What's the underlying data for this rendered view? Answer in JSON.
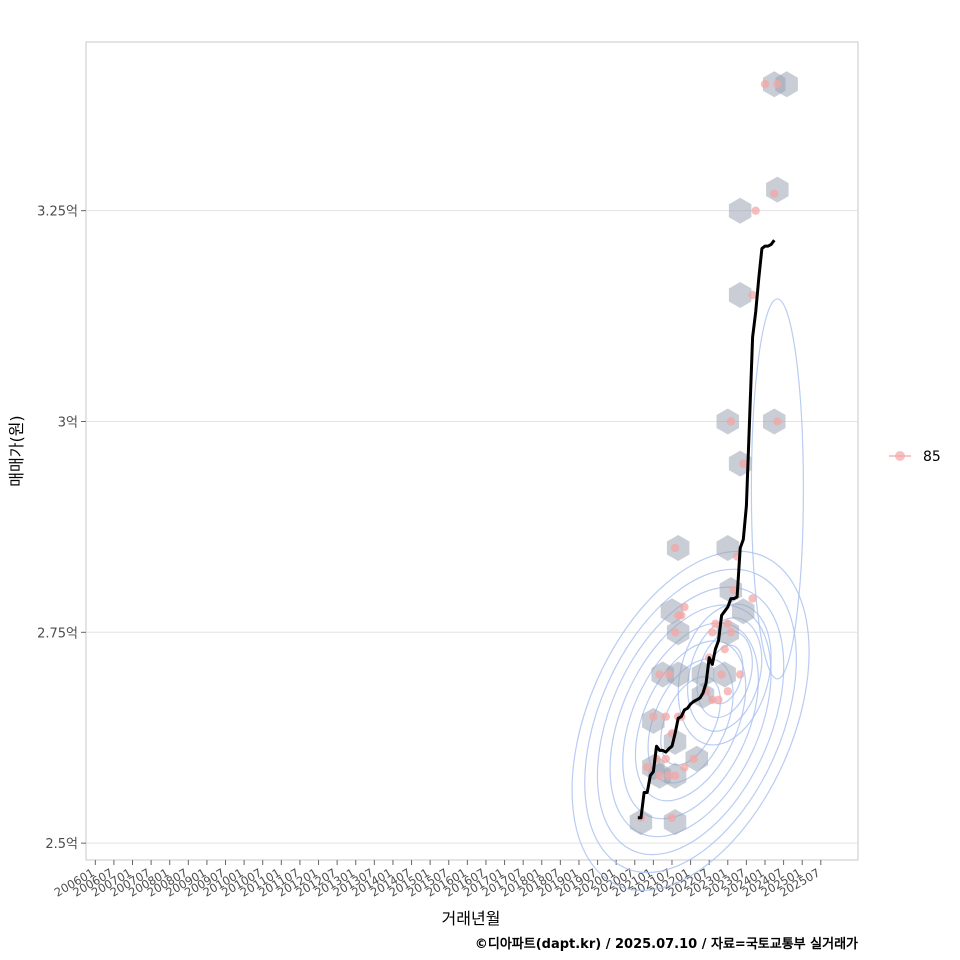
{
  "chart_data": {
    "type": "scatter",
    "xlabel": "거래년월",
    "ylabel": "매매가(원)",
    "caption": "©디아파트(dapt.kr) / 2025.07.10 / 자료=국토교통부 실거래가",
    "x_ticks": [
      "200601",
      "200607",
      "200701",
      "200707",
      "200801",
      "200807",
      "200901",
      "200907",
      "201001",
      "201007",
      "201101",
      "201107",
      "201201",
      "201207",
      "201301",
      "201307",
      "201401",
      "201407",
      "201501",
      "201507",
      "201601",
      "201607",
      "201701",
      "201707",
      "201801",
      "201807",
      "201901",
      "201907",
      "202001",
      "202007",
      "202101",
      "202107",
      "202201",
      "202207",
      "202301",
      "202307",
      "202401",
      "202407",
      "202501",
      "202507"
    ],
    "y_ticks": [
      {
        "value": 2.5,
        "label": "2.5억"
      },
      {
        "value": 2.75,
        "label": "2.75억"
      },
      {
        "value": 3.0,
        "label": "3억"
      },
      {
        "value": 3.25,
        "label": "3.25억"
      }
    ],
    "xlim": [
      "2005-10",
      "2026-07"
    ],
    "ylim": [
      2.48,
      3.45
    ],
    "grid": true,
    "legend": {
      "position": "right",
      "entries": [
        {
          "label": "85",
          "color": "#f4a6a6"
        }
      ]
    },
    "colors": {
      "points": "#f4a6a6",
      "hex": "#9aa4b4",
      "contour": "#a8bff0",
      "trend": "#000000"
    },
    "points": [
      [
        "2020-09",
        2.53
      ],
      [
        "2020-11",
        2.59
      ],
      [
        "2021-01",
        2.65
      ],
      [
        "2021-02",
        2.6
      ],
      [
        "2021-03",
        2.58
      ],
      [
        "2021-03",
        2.7
      ],
      [
        "2021-05",
        2.6
      ],
      [
        "2021-05",
        2.65
      ],
      [
        "2021-06",
        2.58
      ],
      [
        "2021-06",
        2.7
      ],
      [
        "2021-07",
        2.53
      ],
      [
        "2021-07",
        2.63
      ],
      [
        "2021-08",
        2.58
      ],
      [
        "2021-08",
        2.75
      ],
      [
        "2021-08",
        2.85
      ],
      [
        "2021-09",
        2.65
      ],
      [
        "2021-09",
        2.77
      ],
      [
        "2021-10",
        2.65
      ],
      [
        "2021-10",
        2.77
      ],
      [
        "2021-11",
        2.59
      ],
      [
        "2021-11",
        2.78
      ],
      [
        "2022-02",
        2.6
      ],
      [
        "2022-06",
        2.68
      ],
      [
        "2022-07",
        2.72
      ],
      [
        "2022-08",
        2.75
      ],
      [
        "2022-08",
        2.67
      ],
      [
        "2022-09",
        2.76
      ],
      [
        "2022-10",
        2.67
      ],
      [
        "2022-11",
        2.7
      ],
      [
        "2022-12",
        2.73
      ],
      [
        "2023-01",
        2.68
      ],
      [
        "2023-01",
        2.76
      ],
      [
        "2023-02",
        2.75
      ],
      [
        "2023-03",
        2.8
      ],
      [
        "2023-04",
        2.84
      ],
      [
        "2023-05",
        2.7
      ],
      [
        "2023-06",
        2.95
      ],
      [
        "2023-02",
        3.0
      ],
      [
        "2023-09",
        2.79
      ],
      [
        "2023-09",
        3.15
      ],
      [
        "2023-10",
        3.25
      ],
      [
        "2024-01",
        3.4
      ],
      [
        "2024-05",
        3.4
      ],
      [
        "2024-05",
        3.0
      ],
      [
        "2024-04",
        3.27
      ]
    ],
    "hexbins": [
      [
        "2020-09",
        2.525
      ],
      [
        "2021-01",
        2.59
      ],
      [
        "2021-01",
        2.645
      ],
      [
        "2021-03",
        2.58
      ],
      [
        "2021-04",
        2.7
      ],
      [
        "2021-07",
        2.775
      ],
      [
        "2021-08",
        2.525
      ],
      [
        "2021-08",
        2.58
      ],
      [
        "2021-08",
        2.62
      ],
      [
        "2021-09",
        2.7
      ],
      [
        "2021-09",
        2.75
      ],
      [
        "2021-09",
        2.85
      ],
      [
        "2022-03",
        2.6
      ],
      [
        "2022-05",
        2.7
      ],
      [
        "2022-05",
        2.675
      ],
      [
        "2023-01",
        2.75
      ],
      [
        "2023-01",
        2.85
      ],
      [
        "2023-02",
        2.8
      ],
      [
        "2023-01",
        3.0
      ],
      [
        "2023-06",
        2.775
      ],
      [
        "2023-05",
        2.95
      ],
      [
        "2023-05",
        3.15
      ],
      [
        "2023-05",
        3.25
      ],
      [
        "2024-04",
        3.0
      ],
      [
        "2024-05",
        3.275
      ],
      [
        "2024-04",
        3.4
      ],
      [
        "2024-08",
        3.4
      ],
      [
        "2022-12",
        2.7
      ]
    ],
    "trend": [
      [
        "2020-08",
        2.53
      ],
      [
        "2020-09",
        2.53
      ],
      [
        "2020-10",
        2.56
      ],
      [
        "2020-11",
        2.56
      ],
      [
        "2020-12",
        2.58
      ],
      [
        "2021-01",
        2.585
      ],
      [
        "2021-02",
        2.615
      ],
      [
        "2021-03",
        2.61
      ],
      [
        "2021-04",
        2.61
      ],
      [
        "2021-05",
        2.608
      ],
      [
        "2021-06",
        2.612
      ],
      [
        "2021-07",
        2.615
      ],
      [
        "2021-08",
        2.63
      ],
      [
        "2021-09",
        2.648
      ],
      [
        "2021-10",
        2.65
      ],
      [
        "2021-11",
        2.658
      ],
      [
        "2021-12",
        2.66
      ],
      [
        "2022-01",
        2.665
      ],
      [
        "2022-02",
        2.668
      ],
      [
        "2022-03",
        2.67
      ],
      [
        "2022-04",
        2.672
      ],
      [
        "2022-05",
        2.678
      ],
      [
        "2022-06",
        2.69
      ],
      [
        "2022-07",
        2.72
      ],
      [
        "2022-08",
        2.712
      ],
      [
        "2022-09",
        2.73
      ],
      [
        "2022-10",
        2.74
      ],
      [
        "2022-11",
        2.77
      ],
      [
        "2022-12",
        2.775
      ],
      [
        "2023-01",
        2.78
      ],
      [
        "2023-02",
        2.79
      ],
      [
        "2023-03",
        2.79
      ],
      [
        "2023-04",
        2.792
      ],
      [
        "2023-05",
        2.85
      ],
      [
        "2023-06",
        2.86
      ],
      [
        "2023-07",
        2.9
      ],
      [
        "2023-08",
        3.0
      ],
      [
        "2023-09",
        3.1
      ],
      [
        "2023-10",
        3.13
      ],
      [
        "2023-11",
        3.17
      ],
      [
        "2023-12",
        3.205
      ],
      [
        "2024-01",
        3.208
      ],
      [
        "2024-02",
        3.208
      ],
      [
        "2024-03",
        3.21
      ],
      [
        "2024-04",
        3.215
      ]
    ]
  }
}
